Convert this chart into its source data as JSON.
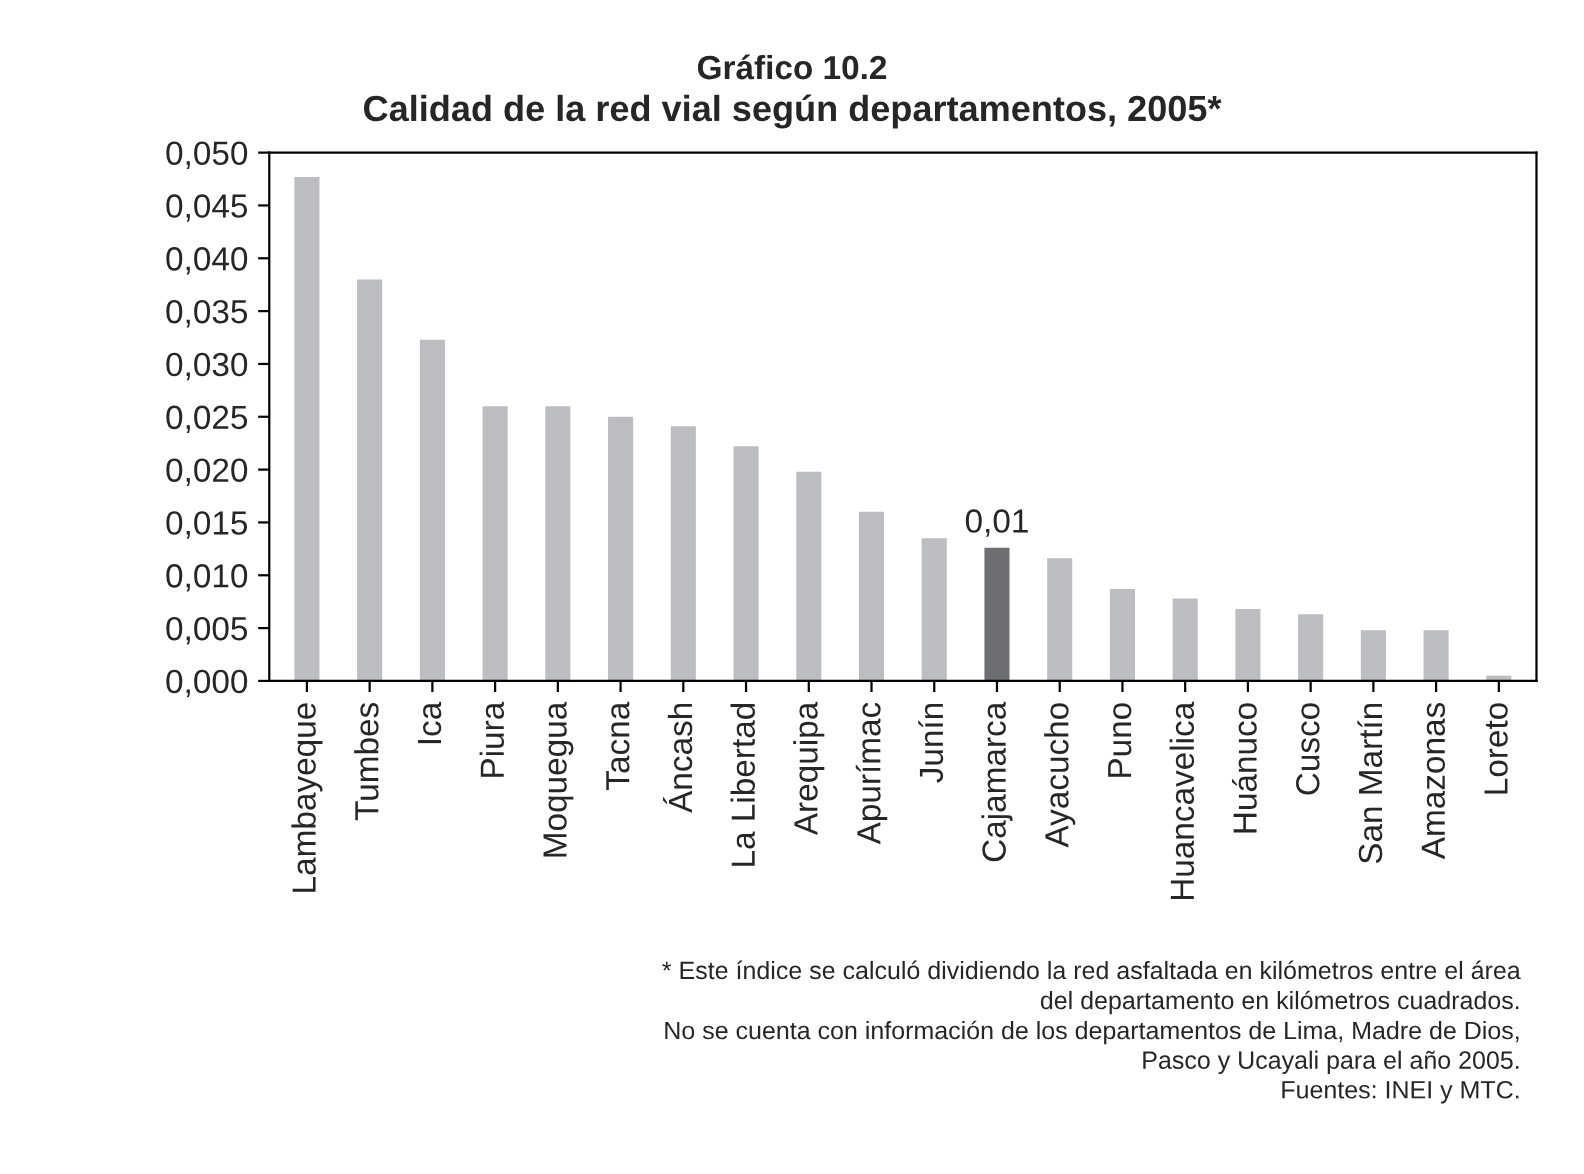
{
  "chart_data": {
    "type": "bar",
    "title": "Gráfico 10.2",
    "subtitle": "Calidad de la red vial según departamentos, 2005*",
    "categories": [
      "Lambayeque",
      "Tumbes",
      "Ica",
      "Piura",
      "Moquegua",
      "Tacna",
      "Áncash",
      "La Libertad",
      "Arequipa",
      "Apurímac",
      "Junín",
      "Cajamarca",
      "Ayacucho",
      "Puno",
      "Huancavelica",
      "Huánuco",
      "Cusco",
      "San Martín",
      "Amazonas",
      "Loreto"
    ],
    "values": [
      0.0477,
      0.038,
      0.0323,
      0.026,
      0.026,
      0.025,
      0.0241,
      0.0222,
      0.0198,
      0.016,
      0.0135,
      0.0126,
      0.0116,
      0.0087,
      0.0078,
      0.0068,
      0.0063,
      0.0048,
      0.0048,
      0.0005
    ],
    "colors": [
      "#bcbdc0",
      "#bcbdc0",
      "#bcbdc0",
      "#bcbdc0",
      "#bcbdc0",
      "#bcbdc0",
      "#bcbdc0",
      "#bcbdc0",
      "#bcbdc0",
      "#bcbdc0",
      "#bcbdc0",
      "#6d6e71",
      "#bcbdc0",
      "#bcbdc0",
      "#bcbdc0",
      "#bcbdc0",
      "#bcbdc0",
      "#bcbdc0",
      "#bcbdc0",
      "#bcbdc0"
    ],
    "value_labels": [
      null,
      null,
      null,
      null,
      null,
      null,
      null,
      null,
      null,
      null,
      null,
      "0,01",
      null,
      null,
      null,
      null,
      null,
      null,
      null,
      null
    ],
    "ylim": [
      0,
      0.05
    ],
    "yticks": [
      {
        "value": 0,
        "label": "0,000"
      },
      {
        "value": 0.005,
        "label": "0,005"
      },
      {
        "value": 0.01,
        "label": "0,010"
      },
      {
        "value": 0.015,
        "label": "0,015"
      },
      {
        "value": 0.02,
        "label": "0,020"
      },
      {
        "value": 0.025,
        "label": "0,025"
      },
      {
        "value": 0.03,
        "label": "0,030"
      },
      {
        "value": 0.035,
        "label": "0,035"
      },
      {
        "value": 0.04,
        "label": "0,040"
      },
      {
        "value": 0.045,
        "label": "0,045"
      },
      {
        "value": 0.05,
        "label": "0,050"
      }
    ],
    "grid": false,
    "annotations": [
      "* Este índice se calculó dividiendo la red asfaltada en kilómetros entre el área\ndel departamento en kilómetros cuadrados.\nNo se cuenta con información de los departamentos de Lima, Madre de Dios,\nPasco y Ucayali para el año 2005.\nFuentes: INEI y MTC."
    ]
  }
}
